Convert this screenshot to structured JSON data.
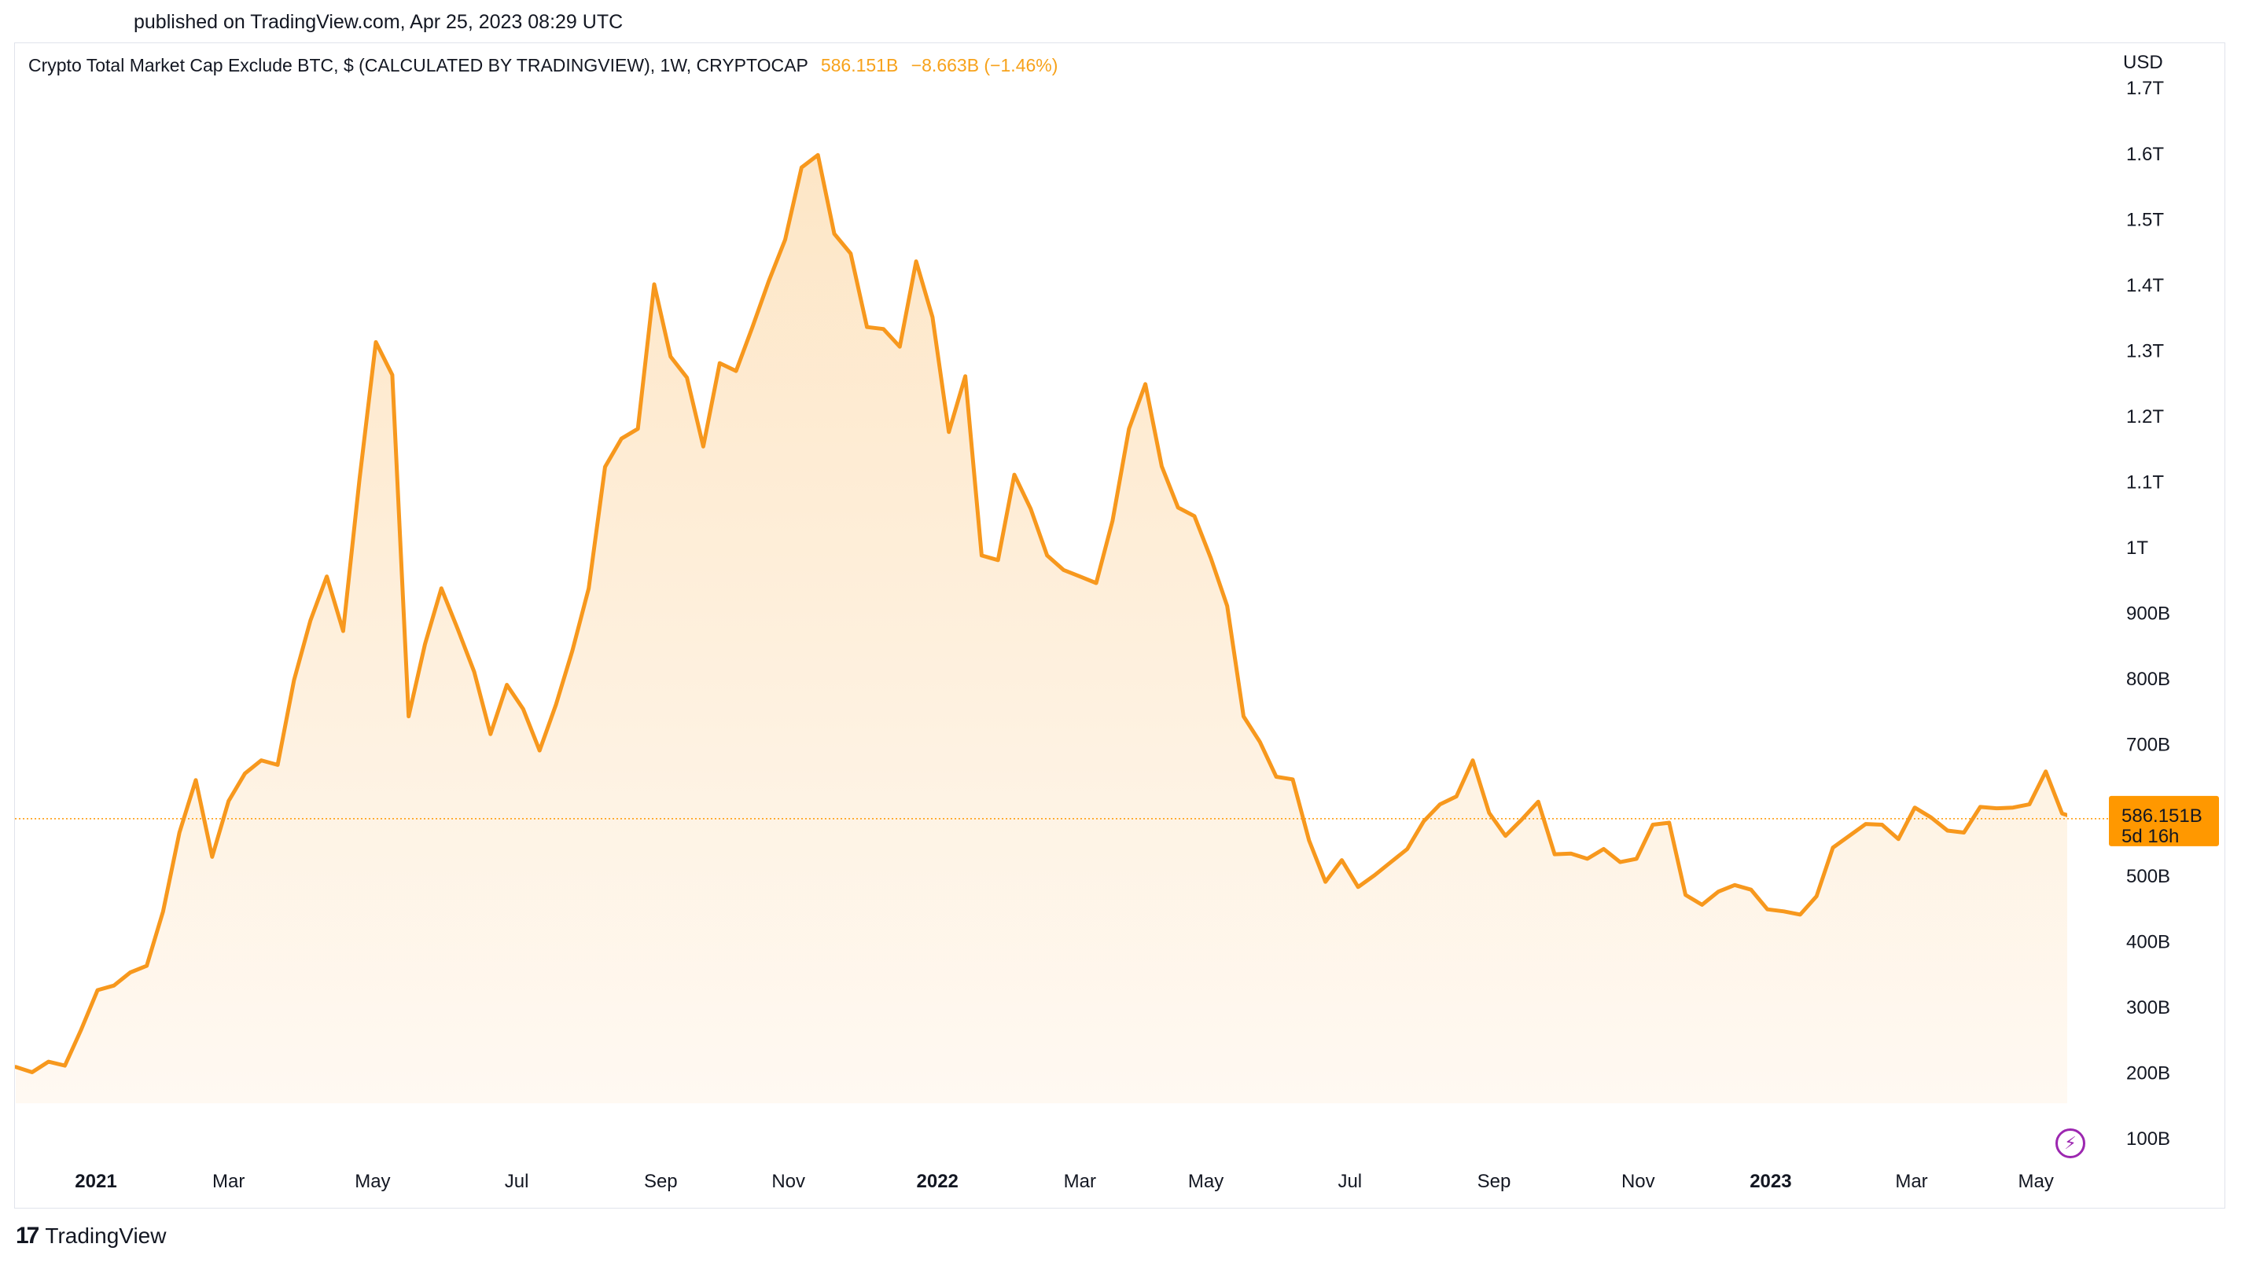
{
  "header": {
    "published": "published on TradingView.com, Apr 25, 2023 08:29 UTC"
  },
  "legend": {
    "title": "Crypto Total Market Cap Exclude BTC, $ (CALCULATED BY TRADINGVIEW), 1W, CRYPTOCAP",
    "last_value": "586.151B",
    "change": "−8.663B (−1.46%)"
  },
  "axis": {
    "currency": "USD"
  },
  "price_tag": {
    "value": "586.151B",
    "countdown": "5d 16h"
  },
  "branding": {
    "logo": "17",
    "name": "TradingView"
  },
  "colors": {
    "line": "#f7981d",
    "accent": "#ff9800",
    "fill_top": "#fde6c6",
    "fill_bottom": "#fff9f2"
  },
  "icons": {
    "lightning": "lightning-icon",
    "logo": "tradingview-logo-icon"
  },
  "chart_data": {
    "type": "area",
    "title": "Crypto Total Market Cap Exclude BTC",
    "ylabel": "USD",
    "ylim": [
      40,
      1700
    ],
    "xlim": [
      0,
      122
    ],
    "y_tick_values": [
      100,
      200,
      300,
      400,
      500,
      600,
      700,
      800,
      900,
      1000,
      1100,
      1200,
      1300,
      1400,
      1500,
      1600,
      1700
    ],
    "y_tick_labels": [
      "100B",
      "200B",
      "300B",
      "400B",
      "500B",
      "600B",
      "700B",
      "800B",
      "900B",
      "1T",
      "1.1T",
      "1.2T",
      "1.3T",
      "1.4T",
      "1.5T",
      "1.6T",
      "1.7T"
    ],
    "x_ticks": [
      {
        "week": 4.9,
        "label": "2021",
        "bold": true
      },
      {
        "week": 13.0,
        "label": "Mar",
        "bold": false
      },
      {
        "week": 21.8,
        "label": "May",
        "bold": false
      },
      {
        "week": 30.6,
        "label": "Jul",
        "bold": false
      },
      {
        "week": 39.4,
        "label": "Sep",
        "bold": false
      },
      {
        "week": 47.2,
        "label": "Nov",
        "bold": false
      },
      {
        "week": 56.3,
        "label": "2022",
        "bold": true
      },
      {
        "week": 65.0,
        "label": "Mar",
        "bold": false
      },
      {
        "week": 72.7,
        "label": "May",
        "bold": false
      },
      {
        "week": 81.5,
        "label": "Jul",
        "bold": false
      },
      {
        "week": 90.3,
        "label": "Sep",
        "bold": false
      },
      {
        "week": 99.1,
        "label": "Nov",
        "bold": false
      },
      {
        "week": 107.2,
        "label": "2023",
        "bold": true
      },
      {
        "week": 115.8,
        "label": "Mar",
        "bold": false
      },
      {
        "week": 123.4,
        "label": "May",
        "bold": false
      }
    ],
    "series": [
      {
        "name": "Total Market Cap Exclude BTC (B)",
        "values": [
          208,
          200,
          216,
          210,
          265,
          325,
          332,
          352,
          362,
          445,
          565,
          645,
          528,
          613,
          655,
          675,
          668,
          797,
          888,
          955,
          872,
          1103,
          1312,
          1262,
          742,
          852,
          937,
          875,
          810,
          715,
          790,
          753,
          690,
          760,
          842,
          937,
          1122,
          1165,
          1180,
          1400,
          1290,
          1258,
          1153,
          1280,
          1268,
          1335,
          1405,
          1468,
          1578,
          1597,
          1477,
          1447,
          1335,
          1332,
          1305,
          1435,
          1350,
          1175,
          1260,
          987,
          980,
          1110,
          1058,
          987,
          965,
          955,
          945,
          1040,
          1180,
          1248,
          1123,
          1060,
          1047,
          983,
          910,
          742,
          703,
          650,
          646,
          553,
          490,
          523,
          482,
          500,
          520,
          540,
          582,
          608,
          620,
          675,
          595,
          560,
          585,
          612,
          532,
          533,
          525,
          540,
          520,
          525,
          577,
          580,
          470,
          455,
          475,
          485,
          478,
          448,
          445,
          440,
          468,
          542,
          560,
          578,
          577,
          555,
          603,
          588,
          568,
          565,
          604,
          602,
          603,
          608,
          658,
          594,
          586
        ]
      }
    ]
  }
}
